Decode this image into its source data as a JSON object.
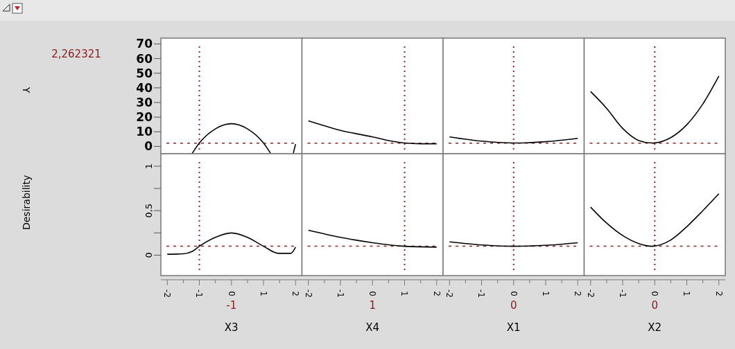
{
  "chart_data": [
    {
      "type": "line",
      "ylabel": "Y",
      "annotations": [
        "2,262321"
      ],
      "xlim": [
        -2.2,
        2.2
      ],
      "ylim": [
        -5,
        74
      ],
      "yticks": [
        0,
        10,
        20,
        30,
        40,
        50,
        60,
        70
      ],
      "tick_labels": "y",
      "series": [
        {
          "color": "#000000",
          "x": [
            -1.22,
            -1,
            -0.5,
            0,
            0.5,
            1,
            1.22
          ],
          "values": [
            -4.7,
            2.3,
            12,
            15.5,
            12,
            2.3,
            -4.7
          ]
        },
        {
          "color": "#000000",
          "x": [
            1.93,
            2
          ],
          "values": [
            -4.7,
            1.5
          ]
        }
      ],
      "ref_lines": [
        {
          "axis": "x",
          "value": -1,
          "color": "#8b2323",
          "line_style": "dotted"
        },
        {
          "axis": "y",
          "value": 2.262321,
          "color": "#8b2323",
          "line_style": "dashed"
        }
      ]
    },
    {
      "type": "line",
      "xlim": [
        -2.2,
        2.2
      ],
      "ylim": [
        -5,
        74
      ],
      "tick_labels": false,
      "color": "#000000",
      "x": [
        -2,
        -1,
        0,
        0.5,
        1,
        1.5,
        2
      ],
      "values": [
        17.5,
        11,
        6.5,
        4,
        2.3,
        1.8,
        1.8
      ],
      "ref_lines": [
        {
          "axis": "x",
          "value": 1,
          "color": "#8b2323",
          "line_style": "dotted"
        },
        {
          "axis": "y",
          "value": 2.262321,
          "color": "#8b2323",
          "line_style": "dashed"
        }
      ]
    },
    {
      "type": "line",
      "xlim": [
        -2.2,
        2.2
      ],
      "ylim": [
        -5,
        74
      ],
      "tick_labels": false,
      "color": "#000000",
      "x": [
        -2,
        -1,
        0,
        1,
        2
      ],
      "values": [
        6.5,
        3.6,
        2.3,
        3.2,
        5.5
      ],
      "ref_lines": [
        {
          "axis": "x",
          "value": 0,
          "color": "#8b2323",
          "line_style": "dotted"
        },
        {
          "axis": "y",
          "value": 2.262321,
          "color": "#8b2323",
          "line_style": "dashed"
        }
      ]
    },
    {
      "type": "line",
      "xlim": [
        -2.2,
        2.2
      ],
      "ylim": [
        -5,
        74
      ],
      "tick_labels": false,
      "color": "#000000",
      "x": [
        -2,
        -1.5,
        -1,
        -0.5,
        -0.1,
        0,
        0.5,
        1,
        1.5,
        2
      ],
      "values": [
        37.5,
        26,
        12.3,
        4,
        2.3,
        2.4,
        6,
        14.8,
        29,
        48
      ],
      "ref_lines": [
        {
          "axis": "x",
          "value": 0,
          "color": "#8b2323",
          "line_style": "dotted"
        },
        {
          "axis": "y",
          "value": 2.262321,
          "color": "#8b2323",
          "line_style": "dashed"
        }
      ]
    },
    {
      "type": "line",
      "ylabel": "Desirability",
      "xlabel": "X3",
      "annotations": [
        "-1"
      ],
      "xlim": [
        -2.2,
        2.2
      ],
      "ylim": [
        -0.23,
        1.14
      ],
      "xticks": [
        -2,
        {
          "value": -1.5,
          "label": null
        },
        -1,
        {
          "value": -0.5,
          "label": null
        },
        0,
        {
          "value": 0.5,
          "label": null
        },
        1,
        {
          "value": 1.5,
          "label": null
        },
        2
      ],
      "yticks": [
        0,
        {
          "value": 0.25,
          "label": null
        },
        {
          "value": 0.5,
          "label": "0,5"
        },
        {
          "value": 0.75,
          "label": null
        },
        1
      ],
      "color": "#000000",
      "x": [
        -2,
        -1.5,
        -1.23,
        -1,
        -0.5,
        0,
        0.5,
        1,
        1.47,
        1.85,
        2
      ],
      "values": [
        0.01,
        0.015,
        0.04,
        0.1,
        0.2,
        0.25,
        0.2,
        0.1,
        0.02,
        0.02,
        0.09
      ],
      "ref_lines": [
        {
          "axis": "x",
          "value": -1,
          "color": "#8b2323",
          "line_style": "dotted"
        },
        {
          "axis": "y",
          "value": 0.1,
          "color": "#8b2323",
          "line_style": "dashed"
        }
      ]
    },
    {
      "type": "line",
      "xlabel": "X4",
      "annotations": [
        "1"
      ],
      "xlim": [
        -2.2,
        2.2
      ],
      "ylim": [
        -0.23,
        1.14
      ],
      "xticks": [
        -2,
        {
          "value": -1.5,
          "label": null
        },
        -1,
        {
          "value": -0.5,
          "label": null
        },
        0,
        {
          "value": 0.5,
          "label": null
        },
        1,
        {
          "value": 1.5,
          "label": null
        },
        2
      ],
      "tick_labels": "x",
      "color": "#000000",
      "x": [
        -2,
        -1,
        0,
        1,
        2
      ],
      "values": [
        0.28,
        0.2,
        0.14,
        0.1,
        0.09
      ],
      "ref_lines": [
        {
          "axis": "x",
          "value": 1,
          "color": "#8b2323",
          "line_style": "dotted"
        },
        {
          "axis": "y",
          "value": 0.1,
          "color": "#8b2323",
          "line_style": "dashed"
        }
      ]
    },
    {
      "type": "line",
      "xlabel": "X1",
      "annotations": [
        "0"
      ],
      "xlim": [
        -2.2,
        2.2
      ],
      "ylim": [
        -0.23,
        1.14
      ],
      "xticks": [
        -2,
        {
          "value": -1.5,
          "label": null
        },
        -1,
        {
          "value": -0.5,
          "label": null
        },
        0,
        {
          "value": 0.5,
          "label": null
        },
        1,
        {
          "value": 1.5,
          "label": null
        },
        2
      ],
      "tick_labels": "x",
      "color": "#000000",
      "x": [
        -2,
        -1,
        0,
        1,
        2
      ],
      "values": [
        0.15,
        0.115,
        0.1,
        0.11,
        0.14
      ],
      "ref_lines": [
        {
          "axis": "x",
          "value": 0,
          "color": "#8b2323",
          "line_style": "dotted"
        },
        {
          "axis": "y",
          "value": 0.1,
          "color": "#8b2323",
          "line_style": "dashed"
        }
      ]
    },
    {
      "type": "line",
      "xlabel": "X2",
      "annotations": [
        "0"
      ],
      "xlim": [
        -2.2,
        2.2
      ],
      "ylim": [
        -0.23,
        1.14
      ],
      "xticks": [
        -2,
        {
          "value": -1.5,
          "label": null
        },
        -1,
        {
          "value": -0.5,
          "label": null
        },
        0,
        {
          "value": 0.5,
          "label": null
        },
        1,
        {
          "value": 1.5,
          "label": null
        },
        2
      ],
      "tick_labels": "x",
      "color": "#000000",
      "x": [
        -2,
        -1.5,
        -1,
        -0.5,
        -0.1,
        0.5,
        1,
        1.5,
        2
      ],
      "values": [
        0.54,
        0.36,
        0.22,
        0.13,
        0.1,
        0.17,
        0.32,
        0.5,
        0.69
      ],
      "ref_lines": [
        {
          "axis": "x",
          "value": 0,
          "color": "#8b2323",
          "line_style": "dotted"
        },
        {
          "axis": "y",
          "value": 0.1,
          "color": "#8b2323",
          "line_style": "dashed"
        }
      ]
    }
  ]
}
